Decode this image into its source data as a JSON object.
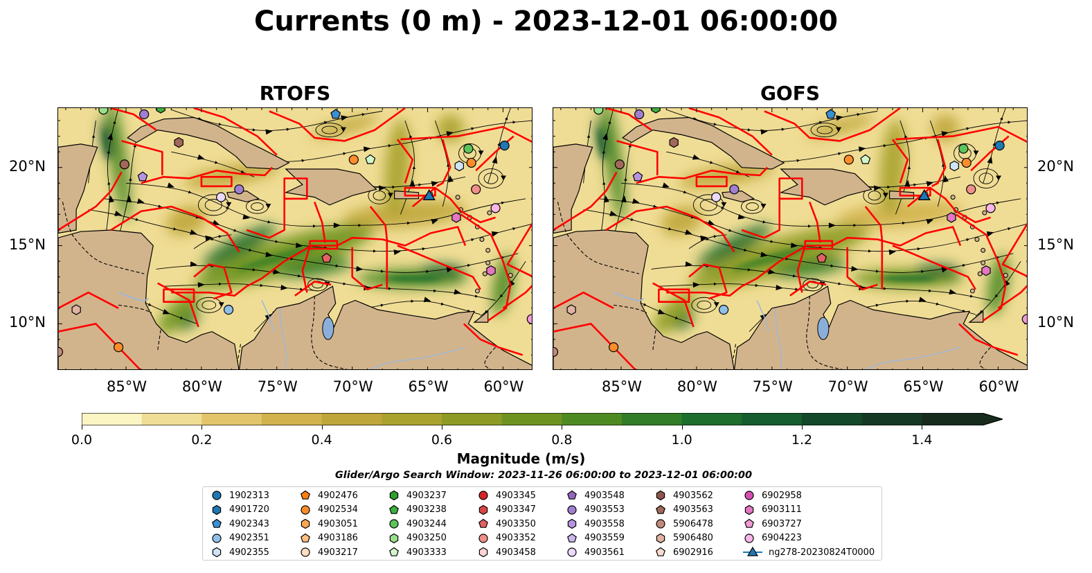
{
  "title": "Currents (0 m) - 2023-12-01 06:00:00",
  "panels": [
    {
      "title": "RTOFS"
    },
    {
      "title": "GOFS"
    }
  ],
  "map_extent": {
    "lon_min": -89.5,
    "lon_max": -58.0,
    "lat_min": 7.0,
    "lat_max": 23.8
  },
  "lon_ticks": [
    "85°W",
    "80°W",
    "75°W",
    "70°W",
    "65°W",
    "60°W"
  ],
  "lat_ticks": [
    "20°N",
    "15°N",
    "10°N"
  ],
  "colorbar": {
    "label": "Magnitude (m/s)",
    "ticks": [
      "0.0",
      "0.2",
      "0.4",
      "0.6",
      "0.8",
      "1.0",
      "1.2",
      "1.4"
    ],
    "colormap": [
      "#fbf5c3",
      "#f0dd95",
      "#e2c56a",
      "#d2b24c",
      "#bfa63a",
      "#a9a22e",
      "#8d9b24",
      "#6f9320",
      "#4e8a22",
      "#327d27",
      "#1d6d2c",
      "#155c2e",
      "#13492a",
      "#143824",
      "#172b1d"
    ]
  },
  "colors": {
    "land": "#d2b48c",
    "boundary": "#ff0000",
    "glider_track": "#1f77b4"
  },
  "search_window": "Glider/Argo Search Window: 2023-11-26 06:00:00 to 2023-12-01 06:00:00",
  "legend": [
    {
      "label": "1902313",
      "color": "#1f77b4",
      "shape": "circle"
    },
    {
      "label": "4901720",
      "color": "#1f77b4",
      "shape": "hexagon"
    },
    {
      "label": "4902343",
      "color": "#3a8fd4",
      "shape": "pentagon"
    },
    {
      "label": "4902351",
      "color": "#8fc0e8",
      "shape": "circle"
    },
    {
      "label": "4902355",
      "color": "#cfe4f7",
      "shape": "hexagon"
    },
    {
      "label": "4902476",
      "color": "#ff7f0e",
      "shape": "pentagon"
    },
    {
      "label": "4902534",
      "color": "#ff8c2a",
      "shape": "circle"
    },
    {
      "label": "4903051",
      "color": "#ffa74f",
      "shape": "hexagon"
    },
    {
      "label": "4903186",
      "color": "#ffbf7f",
      "shape": "pentagon"
    },
    {
      "label": "4903217",
      "color": "#ffdcbf",
      "shape": "circle"
    },
    {
      "label": "4903237",
      "color": "#2ca02c",
      "shape": "hexagon"
    },
    {
      "label": "4903238",
      "color": "#3fae3f",
      "shape": "pentagon"
    },
    {
      "label": "4903244",
      "color": "#5dc35d",
      "shape": "circle"
    },
    {
      "label": "4903250",
      "color": "#98df8a",
      "shape": "hexagon"
    },
    {
      "label": "4903333",
      "color": "#d2f5c9",
      "shape": "pentagon"
    },
    {
      "label": "4903345",
      "color": "#d62728",
      "shape": "circle"
    },
    {
      "label": "4903347",
      "color": "#dc4545",
      "shape": "hexagon"
    },
    {
      "label": "4903350",
      "color": "#e36262",
      "shape": "pentagon"
    },
    {
      "label": "4903352",
      "color": "#f08f8a",
      "shape": "circle"
    },
    {
      "label": "4903458",
      "color": "#fbd5d2",
      "shape": "hexagon"
    },
    {
      "label": "4903548",
      "color": "#9467bd",
      "shape": "pentagon"
    },
    {
      "label": "4903553",
      "color": "#a07fd0",
      "shape": "circle"
    },
    {
      "label": "4903558",
      "color": "#b595e0",
      "shape": "hexagon"
    },
    {
      "label": "4903559",
      "color": "#cdb7ee",
      "shape": "pentagon"
    },
    {
      "label": "4903561",
      "color": "#ead9fb",
      "shape": "circle"
    },
    {
      "label": "4903562",
      "color": "#8c564b",
      "shape": "hexagon"
    },
    {
      "label": "4903563",
      "color": "#a0695c",
      "shape": "pentagon"
    },
    {
      "label": "5906478",
      "color": "#c08a7b",
      "shape": "circle"
    },
    {
      "label": "5906480",
      "color": "#e0b2a2",
      "shape": "hexagon"
    },
    {
      "label": "6902916",
      "color": "#f8dccf",
      "shape": "pentagon"
    },
    {
      "label": "6902958",
      "color": "#d64fb4",
      "shape": "circle"
    },
    {
      "label": "6903111",
      "color": "#e377c2",
      "shape": "hexagon"
    },
    {
      "label": "6903727",
      "color": "#f09bd6",
      "shape": "pentagon"
    },
    {
      "label": "6904223",
      "color": "#f7b6e6",
      "shape": "circle"
    },
    {
      "label": "ng278-20230824T0000",
      "color": "#1f77b4",
      "shape": "triangle-line"
    }
  ],
  "markers": [
    {
      "lon": -86.5,
      "lat": 23.7,
      "color": "#98df8a",
      "shape": "circle"
    },
    {
      "lon": -83.8,
      "lat": 23.4,
      "color": "#a07fd0",
      "shape": "circle"
    },
    {
      "lon": -82.7,
      "lat": 23.8,
      "color": "#3fae3f",
      "shape": "hexagon"
    },
    {
      "lon": -71.1,
      "lat": 23.4,
      "color": "#3a8fd4",
      "shape": "pentagon"
    },
    {
      "lon": -62.3,
      "lat": 21.2,
      "color": "#5dc35d",
      "shape": "circle"
    },
    {
      "lon": -59.9,
      "lat": 21.4,
      "color": "#1f77b4",
      "shape": "circle"
    },
    {
      "lon": -81.5,
      "lat": 21.6,
      "color": "#a0695c",
      "shape": "hexagon"
    },
    {
      "lon": -85.1,
      "lat": 20.2,
      "color": "#a0695c",
      "shape": "circle"
    },
    {
      "lon": -69.9,
      "lat": 20.5,
      "color": "#ff8c2a",
      "shape": "circle"
    },
    {
      "lon": -68.8,
      "lat": 20.5,
      "color": "#d2f5c9",
      "shape": "pentagon"
    },
    {
      "lon": -62.9,
      "lat": 20.1,
      "color": "#cfe4f7",
      "shape": "hexagon"
    },
    {
      "lon": -62.1,
      "lat": 20.3,
      "color": "#ff8c2a",
      "shape": "circle"
    },
    {
      "lon": -83.9,
      "lat": 19.4,
      "color": "#b595e0",
      "shape": "pentagon"
    },
    {
      "lon": -77.5,
      "lat": 18.6,
      "color": "#a07fd0",
      "shape": "circle"
    },
    {
      "lon": -78.7,
      "lat": 18.1,
      "color": "#ead9fb",
      "shape": "circle"
    },
    {
      "lon": -61.8,
      "lat": 18.6,
      "color": "#f08f8a",
      "shape": "circle"
    },
    {
      "lon": -60.5,
      "lat": 17.4,
      "color": "#f7b6e6",
      "shape": "circle"
    },
    {
      "lon": -63.1,
      "lat": 16.8,
      "color": "#e377c2",
      "shape": "hexagon"
    },
    {
      "lon": -71.7,
      "lat": 14.2,
      "color": "#e36262",
      "shape": "pentagon"
    },
    {
      "lon": -60.8,
      "lat": 13.4,
      "color": "#e377c2",
      "shape": "hexagon"
    },
    {
      "lon": -78.2,
      "lat": 10.9,
      "color": "#8fc0e8",
      "shape": "circle"
    },
    {
      "lon": -88.3,
      "lat": 10.9,
      "color": "#e0b2a2",
      "shape": "hexagon"
    },
    {
      "lon": -85.5,
      "lat": 8.5,
      "color": "#ff8c2a",
      "shape": "circle"
    },
    {
      "lon": -89.5,
      "lat": 8.2,
      "color": "#c08a7b",
      "shape": "circle"
    },
    {
      "lon": -58.1,
      "lat": 10.3,
      "color": "#f09bd6",
      "shape": "circle"
    }
  ],
  "glider": {
    "lon": -64.9,
    "lat": 18.2
  },
  "panel_geometry": [
    {
      "offset_x": 0
    },
    {
      "offset_x": 0
    }
  ]
}
